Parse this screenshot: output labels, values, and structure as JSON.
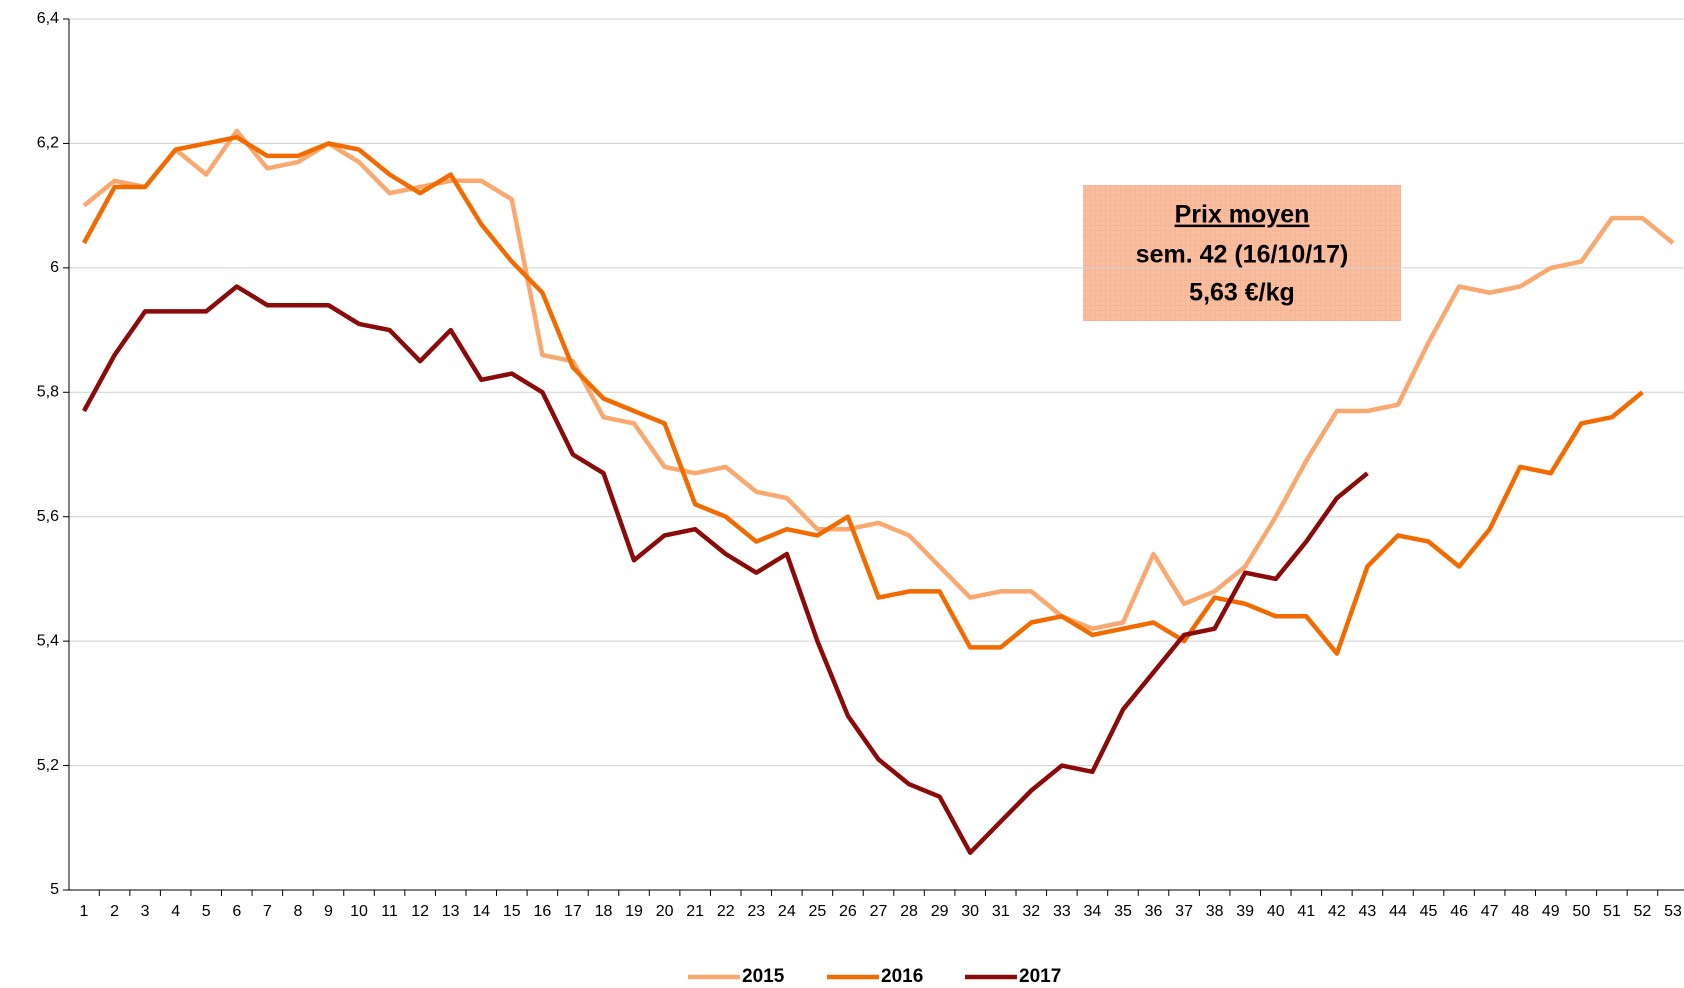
{
  "chart_data": {
    "type": "line",
    "x": [
      1,
      2,
      3,
      4,
      5,
      6,
      7,
      8,
      9,
      10,
      11,
      12,
      13,
      14,
      15,
      16,
      17,
      18,
      19,
      20,
      21,
      22,
      23,
      24,
      25,
      26,
      27,
      28,
      29,
      30,
      31,
      32,
      33,
      34,
      35,
      36,
      37,
      38,
      39,
      40,
      41,
      42,
      43,
      44,
      45,
      46,
      47,
      48,
      49,
      50,
      51,
      52,
      53
    ],
    "xlim": [
      1,
      53
    ],
    "ylim": [
      5,
      6.4
    ],
    "yticks": [
      5,
      {
        "value": 5.2,
        "label": "5,2"
      },
      {
        "value": 5.4,
        "label": "5,4"
      },
      {
        "value": 5.6,
        "label": "5,6"
      },
      {
        "value": 5.8,
        "label": "5,8"
      },
      6,
      {
        "value": 6.2,
        "label": "6,2"
      },
      {
        "value": 6.4,
        "label": "6,4"
      }
    ],
    "grid": true,
    "legend": "bottom",
    "series": [
      {
        "name": "2015",
        "color": "#f9a870",
        "values": [
          6.1,
          6.14,
          6.13,
          6.19,
          6.15,
          6.22,
          6.16,
          6.17,
          6.2,
          6.17,
          6.12,
          6.13,
          6.14,
          6.14,
          6.11,
          5.86,
          5.85,
          5.76,
          5.75,
          5.68,
          5.67,
          5.68,
          5.64,
          5.63,
          5.58,
          5.58,
          5.59,
          5.57,
          5.52,
          5.47,
          5.48,
          5.48,
          5.44,
          5.42,
          5.43,
          5.54,
          5.46,
          5.48,
          5.52,
          5.6,
          5.69,
          5.77,
          5.77,
          5.78,
          5.88,
          5.97,
          5.96,
          5.97,
          6.0,
          6.01,
          6.08,
          6.08,
          6.04
        ]
      },
      {
        "name": "2016",
        "color": "#f26b00",
        "values": [
          6.04,
          6.13,
          6.13,
          6.19,
          6.2,
          6.21,
          6.18,
          6.18,
          6.2,
          6.19,
          6.15,
          6.12,
          6.15,
          6.07,
          6.01,
          5.96,
          5.84,
          5.79,
          5.77,
          5.75,
          5.62,
          5.6,
          5.56,
          5.58,
          5.57,
          5.6,
          5.47,
          5.48,
          5.48,
          5.39,
          5.39,
          5.43,
          5.44,
          5.41,
          5.42,
          5.43,
          5.4,
          5.47,
          5.46,
          5.44,
          5.44,
          5.38,
          5.52,
          5.57,
          5.56,
          5.52,
          5.58,
          5.68,
          5.67,
          5.75,
          5.76,
          5.8,
          null
        ]
      },
      {
        "name": "2017",
        "color": "#8b0a0a",
        "values": [
          5.77,
          5.86,
          5.93,
          5.93,
          5.93,
          5.97,
          5.94,
          5.94,
          5.94,
          5.91,
          5.9,
          5.85,
          5.9,
          5.82,
          5.83,
          5.8,
          5.7,
          5.67,
          5.53,
          5.57,
          5.58,
          5.54,
          5.51,
          5.54,
          5.4,
          5.28,
          5.21,
          5.17,
          5.15,
          5.06,
          5.11,
          5.16,
          5.2,
          5.19,
          5.29,
          5.35,
          5.41,
          5.42,
          5.51,
          5.5,
          5.56,
          5.63,
          5.67,
          null,
          null,
          null,
          null,
          null,
          null,
          null,
          null,
          null,
          null
        ]
      }
    ],
    "annotation": [
      "Prix moyen",
      "sem. 42 (16/10/17)",
      "5,63 €/kg"
    ]
  }
}
